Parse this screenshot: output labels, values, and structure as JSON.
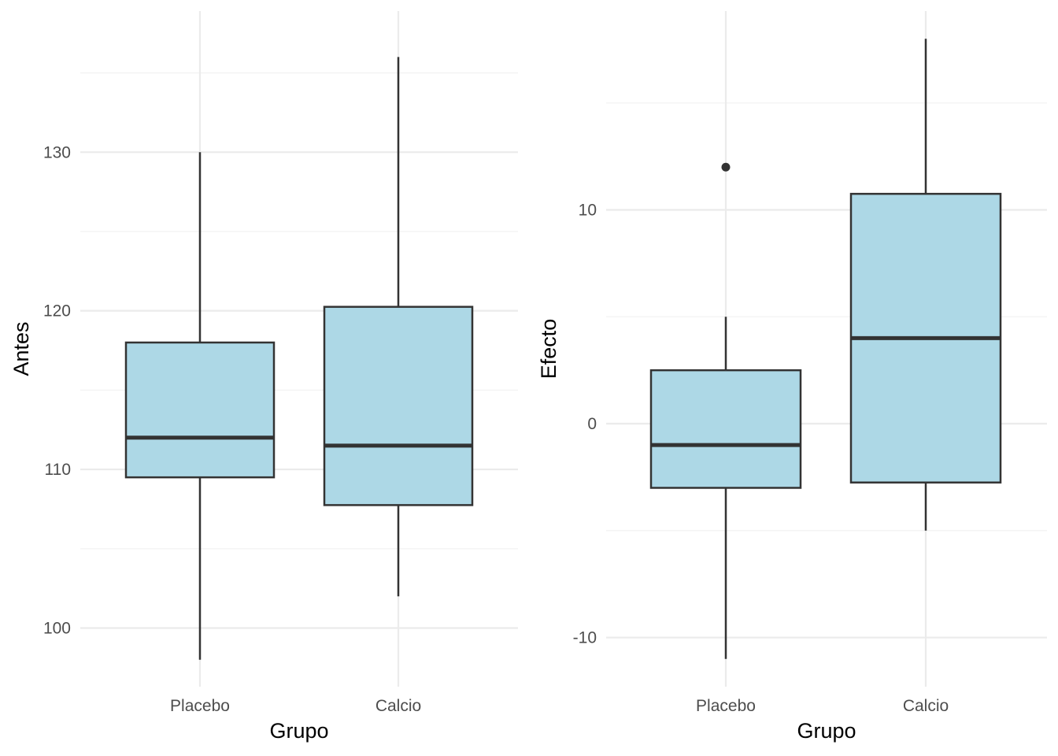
{
  "chart_data": [
    {
      "type": "boxplot",
      "xlabel": "Grupo",
      "ylabel": "Antes",
      "categories": [
        "Placebo",
        "Calcio"
      ],
      "ylim": [
        96.3,
        138.9
      ],
      "yticks": [
        100,
        110,
        120,
        130
      ],
      "ytick_labels": [
        "100",
        "110",
        "120",
        "130"
      ],
      "fill_color": "#add8e6",
      "line_color": "#333333",
      "boxes": [
        {
          "category": "Placebo",
          "whisker_low": 98,
          "q1": 109.5,
          "median": 112,
          "q3": 118,
          "whisker_high": 130,
          "outliers": []
        },
        {
          "category": "Calcio",
          "whisker_low": 102,
          "q1": 107.75,
          "median": 111.5,
          "q3": 120.25,
          "whisker_high": 136,
          "outliers": []
        }
      ],
      "grid": true
    },
    {
      "type": "boxplot",
      "xlabel": "Grupo",
      "ylabel": "Efecto",
      "categories": [
        "Placebo",
        "Calcio"
      ],
      "ylim": [
        -12.3,
        19.3
      ],
      "yticks": [
        -10,
        0,
        10
      ],
      "ytick_labels": [
        "-10",
        "0",
        "10"
      ],
      "fill_color": "#add8e6",
      "line_color": "#333333",
      "boxes": [
        {
          "category": "Placebo",
          "whisker_low": -11,
          "q1": -3,
          "median": -1,
          "q3": 2.5,
          "whisker_high": 5,
          "outliers": [
            12
          ]
        },
        {
          "category": "Calcio",
          "whisker_low": -5,
          "q1": -2.75,
          "median": 4,
          "q3": 10.75,
          "whisker_high": 18,
          "outliers": []
        }
      ],
      "grid": true
    }
  ]
}
